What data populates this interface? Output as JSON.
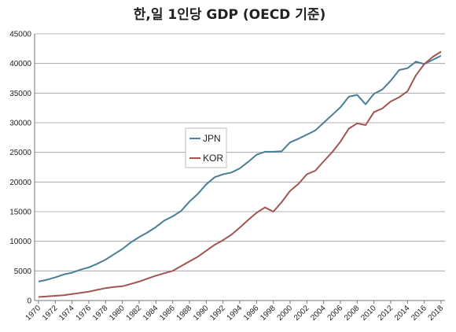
{
  "chart_data": {
    "type": "line",
    "title": "한,일 1인당 GDP (OECD  기준)",
    "xlabel": "",
    "ylabel": "",
    "x": [
      1970,
      1971,
      1972,
      1973,
      1974,
      1975,
      1976,
      1977,
      1978,
      1979,
      1980,
      1981,
      1982,
      1983,
      1984,
      1985,
      1986,
      1987,
      1988,
      1989,
      1990,
      1991,
      1992,
      1993,
      1994,
      1995,
      1996,
      1997,
      1998,
      1999,
      2000,
      2001,
      2002,
      2003,
      2004,
      2005,
      2006,
      2007,
      2008,
      2009,
      2010,
      2011,
      2012,
      2013,
      2014,
      2015,
      2016,
      2017,
      2018
    ],
    "x_tick_labels": [
      "1970",
      "1972",
      "1974",
      "1976",
      "1978",
      "1980",
      "1982",
      "1984",
      "1986",
      "1988",
      "1990",
      "1992",
      "1994",
      "1996",
      "1998",
      "2000",
      "2002",
      "2004",
      "2006",
      "2008",
      "2010",
      "2012",
      "2014",
      "2016",
      "2018"
    ],
    "y_tick_labels": [
      "0",
      "5000",
      "10000",
      "15000",
      "20000",
      "25000",
      "30000",
      "35000",
      "40000",
      "45000"
    ],
    "ylim": [
      0,
      45000
    ],
    "grid": true,
    "legend_placement": "center-left",
    "series": [
      {
        "name": "JPN",
        "color": "#4a7e98",
        "values": [
          3200,
          3500,
          3900,
          4400,
          4700,
          5200,
          5600,
          6200,
          6900,
          7800,
          8700,
          9800,
          10700,
          11500,
          12400,
          13500,
          14200,
          15100,
          16700,
          18000,
          19600,
          20800,
          21300,
          21600,
          22300,
          23400,
          24600,
          25100,
          25100,
          25200,
          26700,
          27300,
          28000,
          28700,
          30000,
          31300,
          32600,
          34400,
          34700,
          33100,
          34900,
          35600,
          37100,
          38900,
          39200,
          40300,
          39900,
          40600,
          41300
        ]
      },
      {
        "name": "KOR",
        "color": "#a15552",
        "values": [
          600,
          700,
          800,
          900,
          1100,
          1300,
          1500,
          1800,
          2100,
          2300,
          2400,
          2800,
          3200,
          3700,
          4200,
          4600,
          5000,
          5800,
          6600,
          7400,
          8400,
          9400,
          10200,
          11100,
          12300,
          13600,
          14800,
          15700,
          15000,
          16600,
          18500,
          19700,
          21300,
          21900,
          23500,
          25000,
          26800,
          29000,
          29900,
          29600,
          31800,
          32400,
          33600,
          34300,
          35300,
          38000,
          39900,
          41100,
          42000
        ]
      }
    ]
  }
}
